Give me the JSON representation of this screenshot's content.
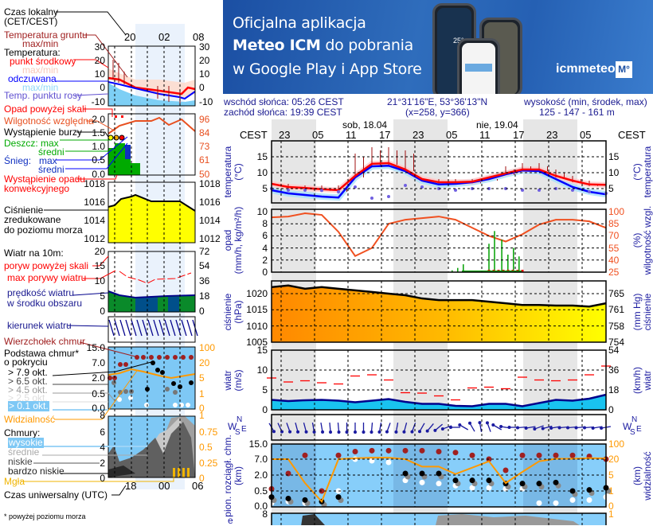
{
  "banner": {
    "line1": "Oficjalna aplikacja",
    "line2_bold": "Meteo ICM",
    "line2_rest": " do pobrania",
    "line3": "w Google Play i App Store",
    "logo": "icmmeteo",
    "logo_badge": "M°",
    "phone_temp": "25°"
  },
  "info": {
    "sunrise": "wschód słońca: 05:26 CEST",
    "sunset": "zachód słońca: 19:39 CEST",
    "coords": "21°31'16\"E, 53°36'13\"N",
    "grid": "(x=258,  y=366)",
    "elev_label": "wysokość (min, środek, max)",
    "elev": "125 - 147 - 161 m"
  },
  "timeaxis": {
    "tz": "CEST",
    "days": [
      "sob, 18.04",
      "nie, 19.04"
    ],
    "hours": [
      "23",
      "05",
      "11",
      "17",
      "23",
      "05",
      "11",
      "17",
      "23",
      "05"
    ]
  },
  "axes": {
    "temp": {
      "title": "temperatura",
      "unit": "(°C)",
      "left": [
        15,
        10,
        5
      ],
      "right": [
        15,
        10,
        5
      ]
    },
    "precip": {
      "title": "opad",
      "unit": "(mm/h, kg/m²/h)",
      "left": [
        10,
        8,
        6,
        4,
        2,
        0
      ],
      "right": [
        100,
        85,
        70,
        55,
        40,
        25
      ],
      "r_title": "wilgotność wzgl.",
      "r_unit": "(%)"
    },
    "pressure": {
      "title": "ciśnienie",
      "unit": "(hPa)",
      "left": [
        1020,
        1015,
        1010,
        1005
      ],
      "right": [
        765,
        761,
        758,
        754
      ],
      "r_title": "ciśnienie",
      "r_unit": "(mm Hg)"
    },
    "wind": {
      "title": "wiatr",
      "unit": "(m/s)",
      "left": [
        15,
        10,
        5,
        0
      ],
      "right": [
        54,
        36,
        18,
        0
      ],
      "r_title": "wiatr",
      "r_unit": "(km/h)"
    },
    "dir": {
      "w": "W",
      "s": "S",
      "n": "N",
      "e": "E"
    },
    "cloud": {
      "title": "pion. rozciągł. chm.",
      "unit": "(km)",
      "left": [
        "15.0",
        "7.0",
        "2.0",
        "0.5",
        "0.0"
      ],
      "right": [
        "100",
        "20",
        "5",
        "1",
        "0"
      ],
      "r_title": "widzialność",
      "r_unit": "(km)"
    },
    "cover": {
      "left": "8",
      "right": "1",
      "title_cut": "e"
    }
  },
  "series": {
    "step_hours": 3,
    "temp_mid": [
      6.5,
      5.5,
      5.2,
      4.8,
      4.5,
      9,
      12.8,
      13,
      11,
      8,
      7,
      7,
      7.2,
      8.5,
      9.8,
      11,
      11,
      9,
      7.5,
      6.3,
      6.2
    ],
    "temp_felt": [
      4.5,
      3.5,
      3,
      2.5,
      2.2,
      8.5,
      12,
      12.2,
      10.5,
      7.5,
      6.3,
      6.5,
      7,
      8,
      9.5,
      10.7,
      10.5,
      8,
      5.5,
      4,
      3.2
    ],
    "dew_point": [
      5,
      4.5,
      4.5,
      4.4,
      4,
      5.5,
      2,
      2.5,
      6,
      5.5,
      5,
      4.5,
      5,
      5,
      5,
      4.5,
      4.5,
      5,
      4.5,
      4,
      3.5
    ],
    "ground_max": [
      7,
      6.5,
      6,
      6,
      6,
      16,
      18,
      18,
      17,
      8,
      8,
      8,
      8,
      8.5,
      12,
      13,
      13,
      11,
      9,
      7.5,
      7
    ],
    "humidity": [
      93,
      94,
      98,
      96,
      75,
      45,
      55,
      85,
      90,
      92,
      94,
      90,
      80,
      70,
      63,
      72,
      84,
      90,
      90,
      88,
      80
    ],
    "precip_bars": [
      [
        32.4,
        0.3
      ],
      [
        33.4,
        0.7
      ],
      [
        34.4,
        1.3
      ],
      [
        39,
        4.7
      ],
      [
        40,
        6.8
      ],
      [
        41.3,
        5.4
      ],
      [
        42.4,
        2.9
      ],
      [
        43.4,
        4.0
      ],
      [
        44.4,
        2.6
      ]
    ],
    "pressure": [
      1022,
      1022.5,
      1021.5,
      1022,
      1021.5,
      1021,
      1020.5,
      1020,
      1019.5,
      1018.5,
      1018,
      1018,
      1018,
      1017.5,
      1017,
      1016.5,
      1016.5,
      1016.3,
      1016.3,
      1016,
      1017
    ],
    "wind_speed": [
      2.5,
      2.2,
      2.4,
      2.5,
      2.3,
      1.9,
      2.3,
      2.7,
      2,
      1.5,
      1.5,
      1,
      0.9,
      1.5,
      1.5,
      0.9,
      1.7,
      2.5,
      2.3,
      2.8,
      3.8
    ],
    "wind_gust": [
      8,
      7,
      7.3,
      6.8,
      6.5,
      8.5,
      8.8,
      7.5,
      4.3,
      4.2,
      3.5,
      2.5,
      5.5,
      5.7,
      5.3,
      8.2,
      7.5,
      7.3,
      7.5,
      8.8,
      11
    ],
    "wind_dir_step_hours": 1.5,
    "wind_dir": [
      150,
      155,
      160,
      165,
      165,
      170,
      170,
      175,
      175,
      180,
      180,
      180,
      185,
      190,
      200,
      190,
      195,
      200,
      210,
      220,
      230,
      250,
      270,
      300,
      330,
      350,
      340,
      300,
      280,
      270,
      265,
      260,
      250,
      255,
      260,
      265,
      265,
      265,
      265,
      260,
      260
    ],
    "visibility_km": [
      20,
      20,
      3,
      0.3,
      20,
      25,
      28,
      28,
      20,
      13,
      13,
      6,
      12,
      18,
      3,
      8,
      18,
      22,
      22,
      25,
      24
    ],
    "cloud_top_km": [
      0.7,
      2.5,
      9,
      0.5,
      9,
      11,
      11.5,
      11.5,
      11.5,
      11.5,
      11,
      10.5,
      9,
      7,
      3.5,
      9,
      9,
      9,
      9,
      8.5,
      7
    ],
    "cloud_base_km": [
      0.3,
      0.25,
      0.2,
      0.15,
      0.3,
      null,
      null,
      null,
      2.5,
      2.5,
      2.5,
      1.5,
      1.5,
      1.5,
      1.2,
      1.2,
      1.2,
      1.3,
      0.5,
      0.6,
      0.8
    ],
    "cloud_low_km": [
      0.1,
      0.15,
      0.1,
      null,
      0.5,
      7,
      6.5,
      6,
      1.5,
      1.3,
      1.2,
      1.0,
      0.8,
      0.8,
      0.7,
      0.7,
      0.1,
      0.1,
      0.2,
      0.2,
      0.3
    ]
  },
  "colors": {
    "temp": "#ff0000",
    "felt": "#0000ff",
    "dew": "#7060e0",
    "humidity": "#f05020",
    "rain": "#00a000",
    "pressure_low": "#ffff00",
    "pressure_high": "#ff8800",
    "wind": "#00008b",
    "gust": "#ff0000",
    "visibility": "#ff9900",
    "cloud_top": "#a02020"
  },
  "legend": {
    "local_time": "Czas lokalny",
    "local_tz": "(CET/CEST)",
    "ground": "Temperatura gruntu",
    "ground_mm": "max/min",
    "temperature": "Temperatura:",
    "midpoint": "punkt środkowy",
    "mid_mm": "max/min",
    "felt": "odczuwana",
    "felt_mm": "max/min",
    "dew": "Temp. punktu rosy",
    "over_scale": "Opad powyżej skali",
    "humidity": "Wilgotność względna",
    "storm": "Wystąpienie burzy",
    "rain": "Deszcz: max",
    "rain_avg": "średni",
    "snow": "Śnieg:",
    "snow_max": "max",
    "snow_avg": "średni",
    "convective": "Wystąpienie opadu",
    "convective2": "konwekcyjnego",
    "pressure": "Ciśnienie",
    "pressure2": "zredukowane",
    "pressure3": "do poziomu morza",
    "wind10": "Wiatr na 10m:",
    "gust_over": "poryw powyżej skali",
    "gust_max": "max porywy wiatru",
    "wind_speed": "prędkość wiatru",
    "wind_speed2": "w środku obszaru",
    "wind_dir": "kierunek wiatru",
    "cloud_top": "Wierzchołek chmur",
    "cloud_base": "Podstawa chmur*",
    "cloud_base2": "o pokryciu",
    "okt79": "> 7.9 okt.",
    "okt65": "> 6.5 okt.",
    "okt45": "> 4.5 okt.",
    "okt25": "> 2.5 okt.",
    "okt01": "> 0.1 okt.",
    "visibility": "Widzialność",
    "clouds": "Chmury:",
    "high": "wysokie",
    "mid": "średnie",
    "low": "niskie",
    "vlow": "bardzo niskie",
    "fog": "Mgła",
    "utc": "Czas uniwersalny (UTC)",
    "footnote": "* powyżej poziomu morza",
    "local_hours": [
      "20",
      "02",
      "08"
    ],
    "utc_hours": [
      "18",
      "00",
      "06"
    ],
    "t_ticks": [
      "30",
      "20",
      "10",
      "0",
      "-10"
    ],
    "p_ticks": [
      "2.0",
      "1.5",
      "1.0",
      "0.5",
      "0.0"
    ],
    "h_ticks": [
      "96",
      "84",
      "73",
      "61",
      "50"
    ],
    "pr_ticks": [
      "1018",
      "1016",
      "1014",
      "1012"
    ],
    "w_ticks": [
      "20",
      "15",
      "10",
      "5",
      "0"
    ],
    "wk_ticks": [
      "72",
      "54",
      "36",
      "18",
      "0"
    ],
    "c_ticks": [
      "15.0",
      "7.0",
      "2.0",
      "0.5",
      "0.0"
    ],
    "v_ticks": [
      "100",
      "20",
      "5",
      "1",
      "0"
    ],
    "cc_ticks": [
      "8",
      "6",
      "4",
      "2",
      "0"
    ],
    "cr_ticks": [
      "1",
      "0.75",
      "0.5",
      "0.25",
      "0"
    ]
  }
}
